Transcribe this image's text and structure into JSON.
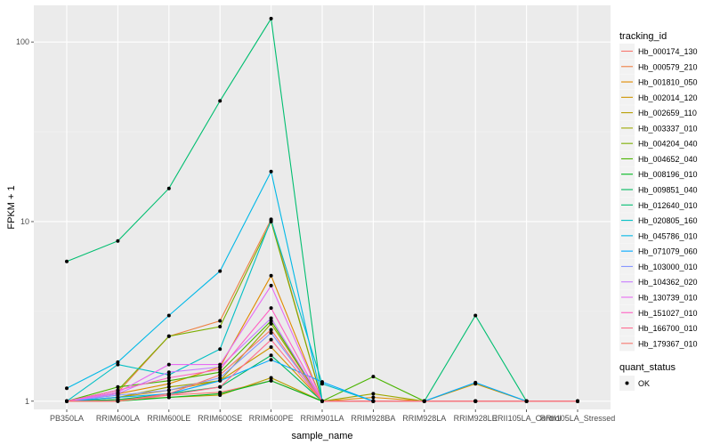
{
  "chart_data": {
    "type": "line",
    "title": "",
    "xlabel": "sample_name",
    "ylabel": "FPKM + 1",
    "y_scale": "log10",
    "ylim": [
      0.9,
      160
    ],
    "y_ticks": [
      1,
      10,
      100
    ],
    "y_tick_labels": [
      "1",
      "10",
      "100"
    ],
    "categories": [
      "PB350LA",
      "RRIM600LA",
      "RRIM600LE",
      "RRIM600SE",
      "RRIM600PE",
      "RRIM901LA",
      "RRIM928BA",
      "RRIM928LA",
      "RRIM928LE",
      "RRII105LA_Control",
      "RRII105LA_Stressed"
    ],
    "legend_title": "tracking_id",
    "legend_title_2": "quant_status",
    "point_legend_label": "OK",
    "series": [
      {
        "name": "Hb_000174_130",
        "color": "#F8766D",
        "values": [
          1.0,
          1.02,
          1.08,
          1.12,
          1.3,
          1.0,
          1.0,
          1.0,
          1.0,
          1.0,
          1.0
        ]
      },
      {
        "name": "Hb_000579_210",
        "color": "#EE8043",
        "values": [
          1.0,
          1.12,
          2.3,
          2.8,
          10.3,
          1.0,
          1.0,
          1.0,
          1.0,
          1.0,
          1.0
        ]
      },
      {
        "name": "Hb_001810_050",
        "color": "#E08B00",
        "values": [
          1.0,
          1.1,
          1.25,
          1.55,
          5.0,
          1.0,
          1.05,
          1.0,
          1.0,
          1.0,
          1.0
        ]
      },
      {
        "name": "Hb_002014_120",
        "color": "#CE9500",
        "values": [
          1.0,
          1.05,
          1.15,
          1.3,
          2.0,
          1.0,
          1.0,
          1.0,
          1.25,
          1.0,
          1.0
        ]
      },
      {
        "name": "Hb_002659_110",
        "color": "#B79F00",
        "values": [
          1.0,
          1.02,
          1.05,
          1.08,
          1.35,
          1.0,
          1.0,
          1.0,
          1.0,
          1.0,
          1.0
        ]
      },
      {
        "name": "Hb_003337_010",
        "color": "#9DA700",
        "values": [
          1.0,
          1.05,
          1.2,
          1.3,
          2.7,
          1.0,
          1.1,
          1.0,
          1.0,
          1.0,
          1.0
        ]
      },
      {
        "name": "Hb_004204_040",
        "color": "#7CAE00",
        "values": [
          1.0,
          1.15,
          2.3,
          2.6,
          10.0,
          1.0,
          1.0,
          1.0,
          1.0,
          1.0,
          1.0
        ]
      },
      {
        "name": "Hb_004652_040",
        "color": "#4AB400",
        "values": [
          1.0,
          1.2,
          1.3,
          1.45,
          2.8,
          1.0,
          1.37,
          1.0,
          1.0,
          1.0,
          1.0
        ]
      },
      {
        "name": "Hb_008196_010",
        "color": "#00B81F",
        "values": [
          1.0,
          1.0,
          1.05,
          1.1,
          1.3,
          1.0,
          1.0,
          1.0,
          1.0,
          1.0,
          1.0
        ]
      },
      {
        "name": "Hb_009851_040",
        "color": "#00BA5E",
        "values": [
          1.0,
          1.02,
          1.1,
          1.2,
          1.8,
          1.0,
          1.0,
          1.0,
          1.0,
          1.0,
          1.0
        ]
      },
      {
        "name": "Hb_012640_010",
        "color": "#00BE70",
        "values": [
          6.0,
          7.8,
          15.3,
          47.0,
          135.0,
          1.0,
          1.0,
          1.0,
          3.0,
          1.0,
          1.0
        ]
      },
      {
        "name": "Hb_020805_160",
        "color": "#00BFC4",
        "values": [
          1.0,
          1.6,
          1.4,
          1.95,
          10.2,
          1.25,
          1.0,
          1.0,
          1.0,
          1.0,
          1.0
        ]
      },
      {
        "name": "Hb_045786_010",
        "color": "#00B8E7",
        "values": [
          1.18,
          1.65,
          3.0,
          5.3,
          19.0,
          1.0,
          1.0,
          1.0,
          1.0,
          1.0,
          1.0
        ]
      },
      {
        "name": "Hb_071079_060",
        "color": "#00A9FF",
        "values": [
          1.0,
          1.05,
          1.1,
          1.3,
          1.7,
          1.28,
          1.0,
          1.0,
          1.27,
          1.0,
          1.0
        ]
      },
      {
        "name": "Hb_103000_010",
        "color": "#8494FF",
        "values": [
          1.0,
          1.08,
          1.15,
          1.35,
          2.4,
          1.0,
          1.0,
          1.0,
          1.0,
          1.0,
          1.0
        ]
      },
      {
        "name": "Hb_104362_020",
        "color": "#C77CFF",
        "values": [
          1.0,
          1.1,
          1.45,
          1.55,
          2.9,
          1.0,
          1.0,
          1.0,
          1.0,
          1.0,
          1.0
        ]
      },
      {
        "name": "Hb_130739_010",
        "color": "#E76BF3",
        "values": [
          1.0,
          1.12,
          1.6,
          1.6,
          4.4,
          1.0,
          1.0,
          1.0,
          1.0,
          1.0,
          1.0
        ]
      },
      {
        "name": "Hb_151027_010",
        "color": "#FF61C3",
        "values": [
          1.0,
          1.15,
          1.35,
          1.5,
          3.3,
          1.0,
          1.0,
          1.0,
          1.0,
          1.0,
          1.0
        ]
      },
      {
        "name": "Hb_166700_010",
        "color": "#FF6C91",
        "values": [
          1.0,
          1.0,
          1.08,
          1.2,
          2.2,
          1.0,
          1.0,
          1.0,
          1.0,
          1.0,
          1.0
        ]
      },
      {
        "name": "Hb_179367_010",
        "color": "#F8766D",
        "values": [
          1.0,
          1.0,
          1.1,
          1.4,
          2.5,
          1.0,
          1.0,
          1.0,
          1.0,
          1.0,
          1.0
        ]
      }
    ]
  }
}
